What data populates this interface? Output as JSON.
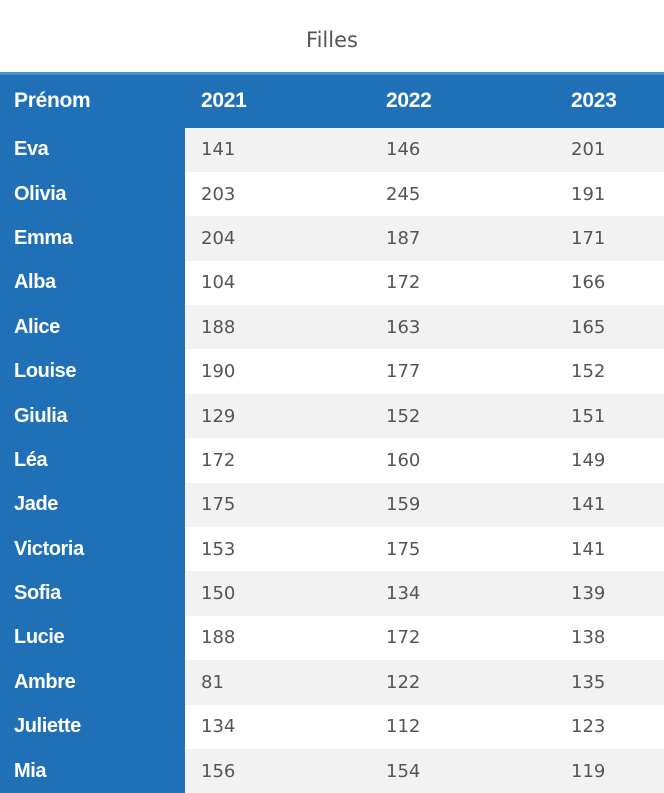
{
  "chart_data": {
    "type": "table",
    "title": "Filles",
    "columns": [
      "Prénom",
      "2021",
      "2022",
      "2023"
    ],
    "rows": [
      {
        "name": "Eva",
        "values": [
          141,
          146,
          201
        ]
      },
      {
        "name": "Olivia",
        "values": [
          203,
          245,
          191
        ]
      },
      {
        "name": "Emma",
        "values": [
          204,
          187,
          171
        ]
      },
      {
        "name": "Alba",
        "values": [
          104,
          172,
          166
        ]
      },
      {
        "name": "Alice",
        "values": [
          188,
          163,
          165
        ]
      },
      {
        "name": "Louise",
        "values": [
          190,
          177,
          152
        ]
      },
      {
        "name": "Giulia",
        "values": [
          129,
          152,
          151
        ]
      },
      {
        "name": "Léa",
        "values": [
          172,
          160,
          149
        ]
      },
      {
        "name": "Jade",
        "values": [
          175,
          159,
          141
        ]
      },
      {
        "name": "Victoria",
        "values": [
          153,
          175,
          141
        ]
      },
      {
        "name": "Sofia",
        "values": [
          150,
          134,
          139
        ]
      },
      {
        "name": "Lucie",
        "values": [
          188,
          172,
          138
        ]
      },
      {
        "name": "Ambre",
        "values": [
          81,
          122,
          135
        ]
      },
      {
        "name": "Juliette",
        "values": [
          134,
          112,
          123
        ]
      },
      {
        "name": "Mia",
        "values": [
          156,
          154,
          119
        ]
      }
    ]
  },
  "colors": {
    "header_bg": "#1f70b6",
    "stripe": "#f2f2f2",
    "text": "#555555"
  }
}
